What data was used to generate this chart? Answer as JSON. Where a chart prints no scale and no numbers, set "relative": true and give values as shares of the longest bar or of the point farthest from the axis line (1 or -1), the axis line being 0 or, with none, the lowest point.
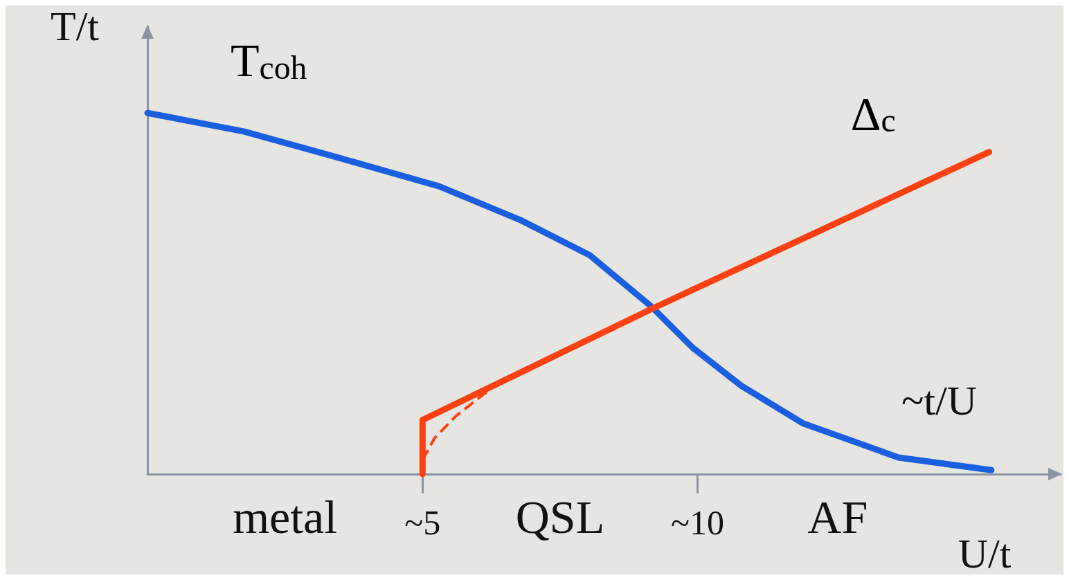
{
  "chart_data": {
    "type": "line",
    "relative": true,
    "xlabel": "U/t",
    "ylabel": "T/t",
    "xlim": [
      0,
      16.6
    ],
    "xticks": [
      {
        "value": 5,
        "label": "~5"
      },
      {
        "value": 10,
        "label": "~10"
      }
    ],
    "grid": false,
    "marker": "none",
    "series": [
      {
        "name": "T$_{coh}$",
        "color": "#1a5fe0",
        "line_style": "solid",
        "x": [
          0,
          1.75,
          3.43,
          5.3,
          6.8,
          8.04,
          9.16,
          9.91,
          10.79,
          11.91,
          13.65,
          15.34
        ],
        "values": [
          1,
          0.949,
          0.878,
          0.797,
          0.702,
          0.606,
          0.464,
          0.35,
          0.245,
          0.141,
          0.046,
          0.011
        ]
      },
      {
        "name": "Δ$_{c}$",
        "color": "#ff4010",
        "line_style": "solid",
        "x": [
          5,
          5,
          9.2,
          15.3
        ],
        "values": [
          0,
          0.15,
          0.46,
          0.892
        ]
      },
      {
        "color": "#ff4010",
        "line_style": "dashed",
        "x": [
          5,
          5.22,
          5.6,
          6.1,
          6.5
        ],
        "values": [
          0.04,
          0.1,
          0.16,
          0.22,
          0.265
        ]
      }
    ],
    "annotations": [
      "metal",
      "QSL",
      "AF",
      "~t/U"
    ]
  }
}
